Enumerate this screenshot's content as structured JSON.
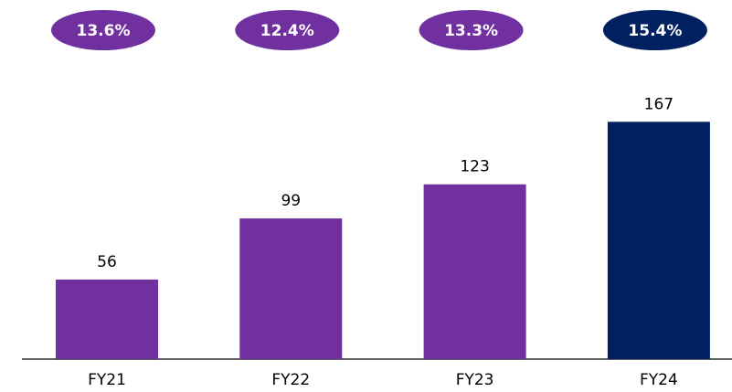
{
  "chart_data": {
    "type": "bar",
    "categories": [
      "FY21",
      "FY22",
      "FY23",
      "FY24"
    ],
    "values": [
      56,
      99,
      123,
      167
    ],
    "colors": [
      "#7030a0",
      "#7030a0",
      "#7030a0",
      "#002060"
    ],
    "annotations": {
      "values": [
        13.6,
        12.4,
        13.3,
        15.4
      ],
      "value_labels": [
        "13.6%",
        "12.4%",
        "13.3%",
        "15.4%"
      ],
      "colors": [
        "#7030a0",
        "#7030a0",
        "#7030a0",
        "#002060"
      ]
    }
  }
}
